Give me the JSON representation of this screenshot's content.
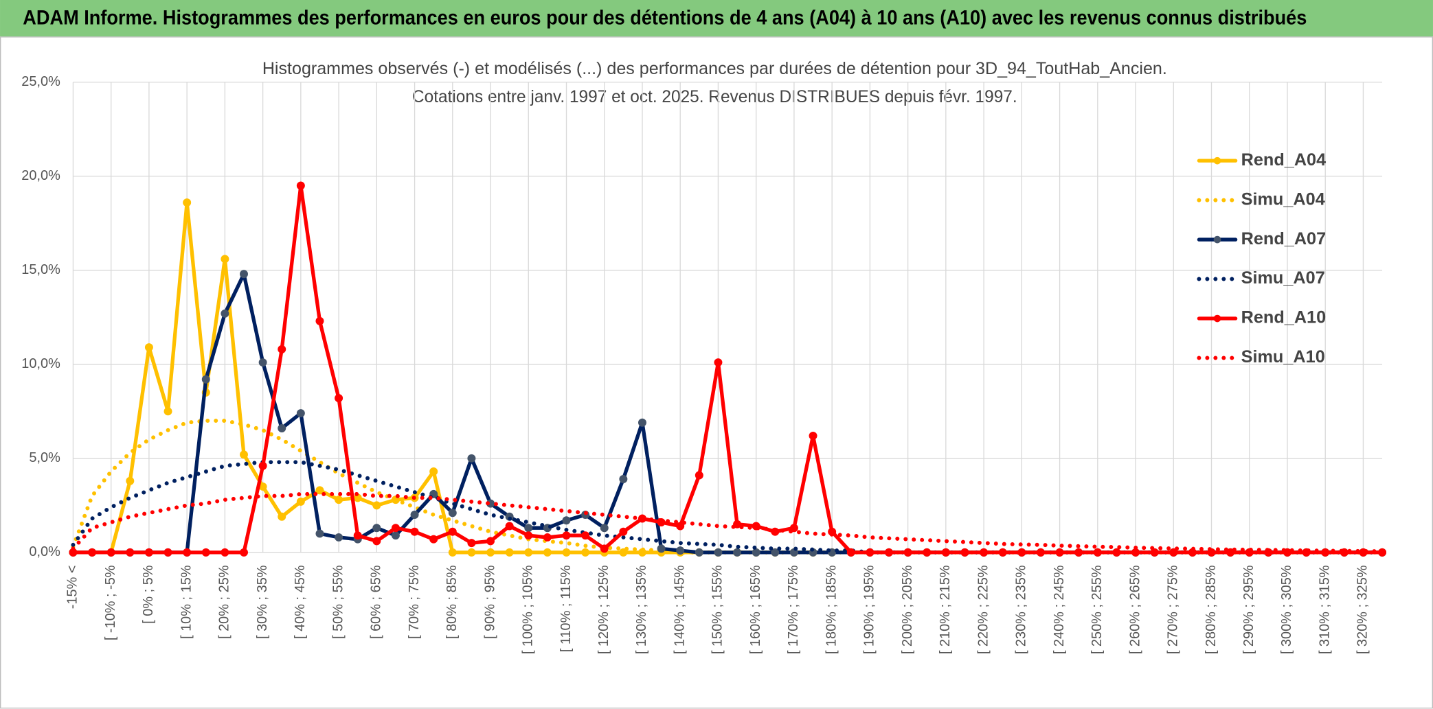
{
  "header": {
    "title": "ADAM Informe. Histogrammes des performances en euros pour des détentions de 4 ans (A04) à 10 ans (A10) avec les revenus connus distribués"
  },
  "chart_data": {
    "type": "line",
    "title": "Histogrammes observés (-) et modélisés (...) des performances par durées de détention pour 3D_94_ToutHab_Ancien.",
    "subtitle": "Cotations entre janv. 1997 et oct. 2025. Revenus DISTRIBUES depuis févr. 1997.",
    "categories": [
      "-15% <",
      null,
      "[ -10% ; -5%",
      null,
      "[ 0% ; 5%",
      null,
      "[ 10% ; 15%",
      null,
      "[ 20% ; 25%",
      null,
      "[ 30% ; 35%",
      null,
      "[ 40% ; 45%",
      null,
      "[ 50% ; 55%",
      null,
      "[ 60% ; 65%",
      null,
      "[ 70% ; 75%",
      null,
      "[ 80% ; 85%",
      null,
      "[ 90% ; 95%",
      null,
      "[ 100% ; 105%",
      null,
      "[ 110% ; 115%",
      null,
      "[ 120% ; 125%",
      null,
      "[ 130% ; 135%",
      null,
      "[ 140% ; 145%",
      null,
      "[ 150% ; 155%",
      null,
      "[ 160% ; 165%",
      null,
      "[ 170% ; 175%",
      null,
      "[ 180% ; 185%",
      null,
      "[ 190% ; 195%",
      null,
      "[ 200% ; 205%",
      null,
      "[ 210% ; 215%",
      null,
      "[ 220% ; 225%",
      null,
      "[ 230% ; 235%",
      null,
      "[ 240% ; 245%",
      null,
      "[ 250% ; 255%",
      null,
      "[ 260% ; 265%",
      null,
      "[ 270% ; 275%",
      null,
      "[ 280% ; 285%",
      null,
      "[ 290% ; 295%",
      null,
      "[ 300% ; 305%",
      null,
      "[ 310% ; 315%",
      null,
      "[ 320% ; 325%",
      null
    ],
    "ylim": [
      0,
      25
    ],
    "yticks": [
      {
        "value": 0,
        "label": "0,0%"
      },
      {
        "value": 5,
        "label": "5,0%"
      },
      {
        "value": 10,
        "label": "10,0%"
      },
      {
        "value": 15,
        "label": "15,0%"
      },
      {
        "value": 20,
        "label": "20,0%"
      },
      {
        "value": 25,
        "label": "25,0%"
      }
    ],
    "grid": true,
    "legend": "right",
    "series": [
      {
        "name": "Rend_A04",
        "color": "#ffc000",
        "marker_color": "#ffc000",
        "line_style": "solid",
        "markers": true,
        "values": [
          0,
          0,
          0,
          3.8,
          10.9,
          7.5,
          18.6,
          8.5,
          15.6,
          5.2,
          3.5,
          1.9,
          2.7,
          3.3,
          2.8,
          2.9,
          2.5,
          2.8,
          2.9,
          4.3,
          0,
          0,
          0,
          0,
          0,
          0,
          0,
          0,
          0,
          0,
          0,
          0,
          0,
          0,
          0,
          0,
          0,
          0,
          0,
          0,
          0,
          0,
          0,
          0,
          0,
          0,
          0,
          0,
          0,
          0,
          0,
          0,
          0,
          0,
          0,
          0,
          0,
          0,
          0,
          0,
          0,
          0,
          0,
          0,
          0,
          0,
          0,
          0,
          0,
          0
        ]
      },
      {
        "name": "Simu_A04",
        "color": "#ffc000",
        "line_style": "dotted",
        "markers": false,
        "values": [
          0.3,
          3.0,
          4.3,
          5.3,
          6.0,
          6.5,
          6.9,
          7.0,
          7.0,
          6.8,
          6.5,
          6.0,
          5.4,
          4.8,
          4.2,
          3.7,
          3.2,
          2.8,
          2.4,
          2.0,
          1.7,
          1.4,
          1.1,
          0.9,
          0.7,
          0.6,
          0.5,
          0.35,
          0.25,
          0.2,
          0.15,
          0.1,
          0,
          0,
          0,
          0,
          0,
          0,
          0,
          0,
          0,
          0,
          0,
          0,
          0,
          0,
          0,
          0,
          0,
          0,
          0,
          0,
          0,
          0,
          0,
          0,
          0,
          0,
          0,
          0,
          0,
          0,
          0,
          0,
          0,
          0,
          0,
          0,
          0,
          0
        ]
      },
      {
        "name": "Rend_A07",
        "color": "#002060",
        "marker_color": "#44546a",
        "line_style": "solid",
        "markers": true,
        "values": [
          0,
          0,
          0,
          0,
          0,
          0,
          0,
          9.2,
          12.7,
          14.8,
          10.1,
          6.6,
          7.4,
          1.0,
          0.8,
          0.7,
          1.3,
          0.9,
          2.0,
          3.1,
          2.1,
          5.0,
          2.6,
          1.9,
          1.3,
          1.3,
          1.7,
          2.0,
          1.3,
          3.9,
          6.9,
          0.2,
          0.1,
          0,
          0,
          0,
          0,
          0,
          0,
          0,
          0,
          0,
          0,
          0,
          0,
          0,
          0,
          0,
          0,
          0,
          0,
          0,
          0,
          0,
          0,
          0,
          0,
          0,
          0,
          0,
          0,
          0,
          0,
          0,
          0,
          0,
          0,
          0,
          0,
          0
        ]
      },
      {
        "name": "Simu_A07",
        "color": "#002060",
        "line_style": "dotted",
        "markers": false,
        "values": [
          0.4,
          1.8,
          2.4,
          2.9,
          3.3,
          3.7,
          4.0,
          4.3,
          4.6,
          4.7,
          4.8,
          4.8,
          4.8,
          4.6,
          4.4,
          4.1,
          3.8,
          3.5,
          3.2,
          2.9,
          2.6,
          2.3,
          2.0,
          1.8,
          1.6,
          1.4,
          1.2,
          1.05,
          0.9,
          0.8,
          0.7,
          0.6,
          0.5,
          0.45,
          0.4,
          0.3,
          0.25,
          0.2,
          0.2,
          0.15,
          0.1,
          0.1,
          0,
          0,
          0,
          0,
          0,
          0,
          0,
          0,
          0,
          0,
          0,
          0,
          0,
          0,
          0,
          0,
          0,
          0,
          0,
          0,
          0,
          0,
          0,
          0,
          0,
          0,
          0,
          0
        ]
      },
      {
        "name": "Rend_A10",
        "color": "#ff0000",
        "marker_color": "#ff0000",
        "line_style": "solid",
        "markers": true,
        "values": [
          0,
          0,
          0,
          0,
          0,
          0,
          0,
          0,
          0,
          0,
          4.6,
          10.8,
          19.5,
          12.3,
          8.2,
          0.9,
          0.6,
          1.3,
          1.1,
          0.7,
          1.1,
          0.5,
          0.6,
          1.4,
          0.9,
          0.8,
          0.9,
          0.9,
          0.2,
          1.1,
          1.8,
          1.6,
          1.4,
          4.1,
          10.1,
          1.5,
          1.4,
          1.1,
          1.3,
          6.2,
          1.1,
          0,
          0,
          0,
          0,
          0,
          0,
          0,
          0,
          0,
          0,
          0,
          0,
          0,
          0,
          0,
          0,
          0,
          0,
          0,
          0,
          0,
          0,
          0,
          0,
          0,
          0,
          0,
          0,
          0
        ]
      },
      {
        "name": "Simu_A10",
        "color": "#ff0000",
        "line_style": "dotted",
        "markers": false,
        "values": [
          0.2,
          1.3,
          1.6,
          1.9,
          2.1,
          2.3,
          2.5,
          2.6,
          2.8,
          2.9,
          3.0,
          3.0,
          3.1,
          3.1,
          3.1,
          3.1,
          3.0,
          3.0,
          2.9,
          2.9,
          2.8,
          2.7,
          2.6,
          2.5,
          2.4,
          2.3,
          2.2,
          2.1,
          2.0,
          1.9,
          1.8,
          1.7,
          1.6,
          1.5,
          1.4,
          1.35,
          1.3,
          1.2,
          1.1,
          1.0,
          0.95,
          0.9,
          0.8,
          0.75,
          0.7,
          0.65,
          0.6,
          0.55,
          0.5,
          0.45,
          0.42,
          0.4,
          0.36,
          0.33,
          0.3,
          0.28,
          0.25,
          0.23,
          0.21,
          0.19,
          0.17,
          0.15,
          0.14,
          0.13,
          0.12,
          0.1,
          0.09,
          0.08,
          0.07,
          0.06
        ]
      }
    ]
  }
}
